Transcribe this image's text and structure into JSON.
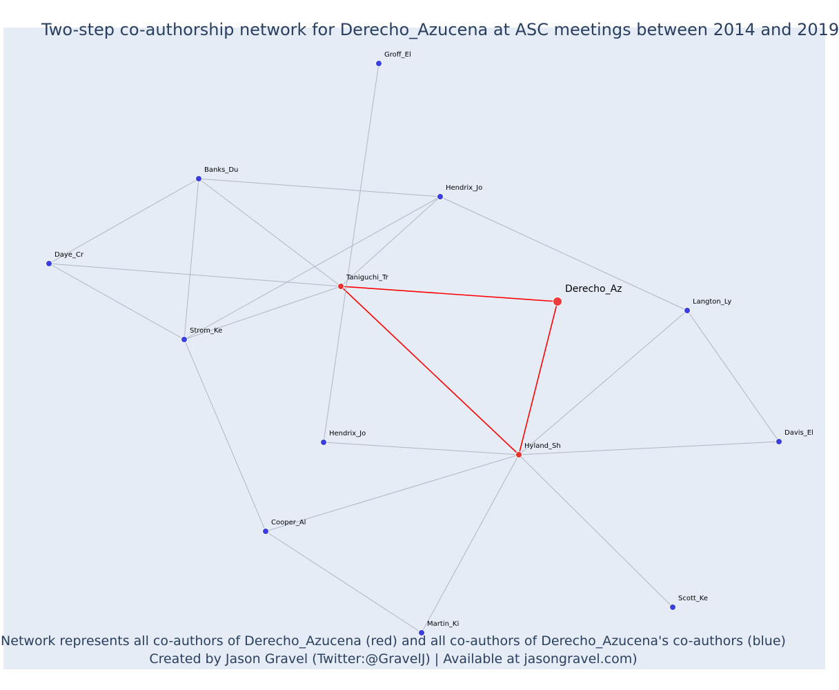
{
  "title": "Two-step co-authorship network for Derecho_Azucena at ASC meetings between 2014 and 2019",
  "footer": {
    "line1": "Network represents all co-authors of Derecho_Azucena (red) and all co-authors of Derecho_Azucena's co-authors (blue)",
    "line2": "Created by Jason Gravel (Twitter:@GravelJ) | Available at jasongravel.com)"
  },
  "colors": {
    "background": "#e5ecf6",
    "ego": "#ef3b3b",
    "coauthor": "#e8322e",
    "second_step": "#3b3fe0",
    "edge": "#b0b6c2",
    "ego_edge": "#ff0000",
    "text": "#2a3f5f"
  },
  "nodes": [
    {
      "id": "derecho_az",
      "label": "Derecho_Az",
      "group": "ego"
    },
    {
      "id": "taniguchi_tr",
      "label": "Taniguchi_Tr",
      "group": "coauthor"
    },
    {
      "id": "hyland_sh",
      "label": "Hyland_Sh",
      "group": "coauthor"
    },
    {
      "id": "groff_el",
      "label": "Groff_El",
      "group": "second_step"
    },
    {
      "id": "banks_du",
      "label": "Banks_Du",
      "group": "second_step"
    },
    {
      "id": "hendrix_jo_1",
      "label": "Hendrix_Jo",
      "group": "second_step"
    },
    {
      "id": "daye_cr",
      "label": "Daye_Cr",
      "group": "second_step"
    },
    {
      "id": "strom_ke",
      "label": "Strom_Ke",
      "group": "second_step"
    },
    {
      "id": "langton_ly",
      "label": "Langton_Ly",
      "group": "second_step"
    },
    {
      "id": "hendrix_jo_2",
      "label": "Hendrix_Jo",
      "group": "second_step"
    },
    {
      "id": "davis_el",
      "label": "Davis_El",
      "group": "second_step"
    },
    {
      "id": "cooper_al",
      "label": "Cooper_Al",
      "group": "second_step"
    },
    {
      "id": "scott_ke",
      "label": "Scott_Ke",
      "group": "second_step"
    },
    {
      "id": "martin_ki",
      "label": "Martin_Ki",
      "group": "second_step"
    }
  ],
  "edges": [
    {
      "source": "derecho_az",
      "target": "taniguchi_tr"
    },
    {
      "source": "derecho_az",
      "target": "hyland_sh"
    },
    {
      "source": "taniguchi_tr",
      "target": "hyland_sh"
    },
    {
      "source": "groff_el",
      "target": "hendrix_jo_2"
    },
    {
      "source": "banks_du",
      "target": "hendrix_jo_1"
    },
    {
      "source": "banks_du",
      "target": "daye_cr"
    },
    {
      "source": "banks_du",
      "target": "strom_ke"
    },
    {
      "source": "banks_du",
      "target": "taniguchi_tr"
    },
    {
      "source": "hendrix_jo_1",
      "target": "taniguchi_tr"
    },
    {
      "source": "hendrix_jo_1",
      "target": "strom_ke"
    },
    {
      "source": "hendrix_jo_1",
      "target": "langton_ly"
    },
    {
      "source": "daye_cr",
      "target": "taniguchi_tr"
    },
    {
      "source": "daye_cr",
      "target": "strom_ke"
    },
    {
      "source": "strom_ke",
      "target": "taniguchi_tr"
    },
    {
      "source": "strom_ke",
      "target": "cooper_al"
    },
    {
      "source": "langton_ly",
      "target": "hyland_sh"
    },
    {
      "source": "langton_ly",
      "target": "davis_el"
    },
    {
      "source": "hendrix_jo_2",
      "target": "hyland_sh"
    },
    {
      "source": "hyland_sh",
      "target": "davis_el"
    },
    {
      "source": "hyland_sh",
      "target": "cooper_al"
    },
    {
      "source": "hyland_sh",
      "target": "scott_ke"
    },
    {
      "source": "hyland_sh",
      "target": "martin_ki"
    },
    {
      "source": "cooper_al",
      "target": "martin_ki"
    }
  ]
}
